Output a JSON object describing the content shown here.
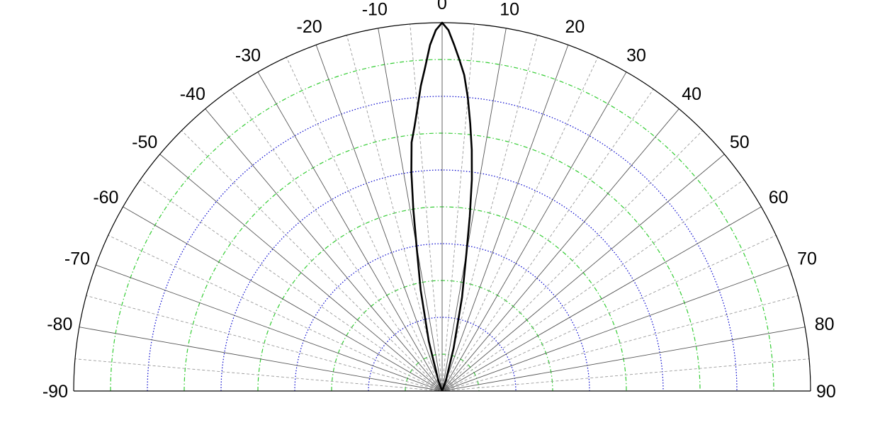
{
  "chart_data": {
    "type": "polar-line",
    "angle_range": [
      -90,
      90
    ],
    "angle_tick_labels": [
      "-90",
      "-80",
      "-70",
      "-60",
      "-50",
      "-40",
      "-30",
      "-20",
      "-10",
      "0",
      "10",
      "20",
      "30",
      "40",
      "50",
      "60",
      "70",
      "80",
      "90"
    ],
    "angle_ticks": [
      -90,
      -80,
      -70,
      -60,
      -50,
      -40,
      -30,
      -20,
      -10,
      0,
      10,
      20,
      30,
      40,
      50,
      60,
      70,
      80,
      90
    ],
    "minor_spokes_every_deg": 5,
    "radial_range": [
      0,
      1
    ],
    "radial_rings_major": [
      0.2,
      0.4,
      0.6,
      0.8,
      1.0
    ],
    "radial_rings_minor": [
      0.1,
      0.3,
      0.5,
      0.7,
      0.9
    ],
    "colors": {
      "major_ring": "#0000cc",
      "minor_ring": "#33cc33",
      "pattern": "#000000"
    },
    "series": [
      {
        "angles": [
          -90,
          -20,
          -15,
          -12,
          -10,
          -9,
          -8,
          -7,
          -6,
          -5,
          -4,
          -3,
          -2,
          -1,
          0,
          1,
          2,
          3,
          4,
          5,
          6,
          7,
          8,
          9,
          10,
          12,
          15,
          20,
          90
        ],
        "values": [
          0,
          0.03,
          0.14,
          0.28,
          0.4,
          0.5,
          0.6,
          0.68,
          0.72,
          0.77,
          0.83,
          0.88,
          0.94,
          0.98,
          1.0,
          0.98,
          0.94,
          0.9,
          0.86,
          0.8,
          0.73,
          0.66,
          0.58,
          0.48,
          0.38,
          0.26,
          0.12,
          0.03,
          0
        ]
      }
    ]
  }
}
